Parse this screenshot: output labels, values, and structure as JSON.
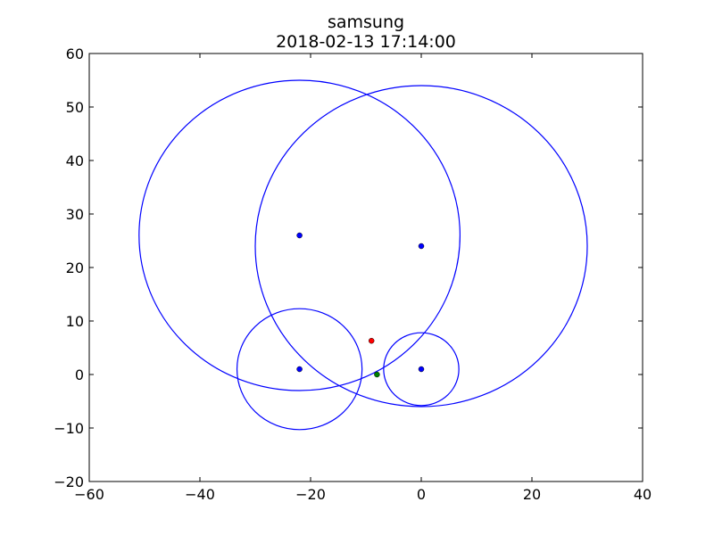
{
  "chart_data": {
    "type": "scatter",
    "title": "samsung",
    "subtitle": "2018-02-13 17:14:00",
    "xlabel": "",
    "ylabel": "",
    "xlim": [
      -60,
      40
    ],
    "ylim": [
      -20,
      60
    ],
    "x_ticks": [
      -60,
      -40,
      -20,
      0,
      20,
      40
    ],
    "y_ticks": [
      -20,
      -10,
      0,
      10,
      20,
      30,
      40,
      50,
      60
    ],
    "x_tick_labels": [
      "−60",
      "−40",
      "−20",
      "0",
      "20",
      "40"
    ],
    "y_tick_labels": [
      "−20",
      "−10",
      "0",
      "10",
      "20",
      "30",
      "40",
      "50",
      "60"
    ],
    "grid": false,
    "circles": [
      {
        "cx": -22,
        "cy": 26,
        "r": 29,
        "color": "#0000ff"
      },
      {
        "cx": 0,
        "cy": 24,
        "r": 30,
        "color": "#0000ff"
      },
      {
        "cx": -22,
        "cy": 1,
        "r": 11.3,
        "color": "#0000ff"
      },
      {
        "cx": 0,
        "cy": 1,
        "r": 6.8,
        "color": "#0000ff"
      }
    ],
    "points": [
      {
        "x": -22,
        "y": 26,
        "color": "#0000ff"
      },
      {
        "x": 0,
        "y": 24,
        "color": "#0000ff"
      },
      {
        "x": -22,
        "y": 1,
        "color": "#0000ff"
      },
      {
        "x": 0,
        "y": 1,
        "color": "#0000ff"
      },
      {
        "x": -9,
        "y": 6.3,
        "color": "#ff0000"
      },
      {
        "x": -8,
        "y": 0,
        "color": "#008000"
      }
    ]
  }
}
